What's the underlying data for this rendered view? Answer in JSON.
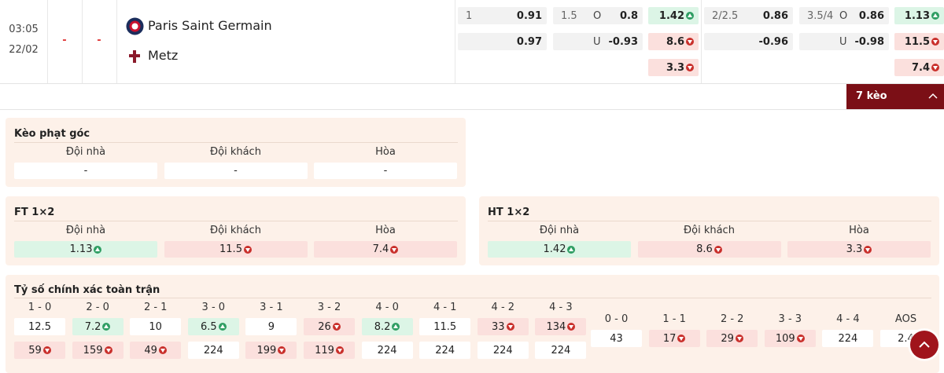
{
  "match": {
    "time": "03:05",
    "date": "22/02",
    "score_home": "-",
    "score_away": "-",
    "home_team": "Paris Saint Germain",
    "away_team": "Metz",
    "odds": [
      [
        {
          "line": "1",
          "price": 0.91
        },
        {
          "price": 0.97
        }
      ],
      [
        {
          "line": "1.5",
          "side": "O",
          "price": 0.8
        },
        {
          "side": "U",
          "price": -0.93
        }
      ],
      [
        {
          "price": 1.42,
          "trend": "up"
        },
        {
          "price": 8.6,
          "trend": "down"
        },
        {
          "price": 3.3,
          "trend": "down"
        }
      ],
      [
        {
          "line": "2/2.5",
          "price": 0.86
        },
        {
          "price": -0.96
        }
      ],
      [
        {
          "line": "3.5/4",
          "side": "O",
          "price": 0.86
        },
        {
          "side": "U",
          "price": -0.98
        }
      ],
      [
        {
          "price": 1.13,
          "trend": "up"
        },
        {
          "price": 11.5,
          "trend": "down"
        },
        {
          "price": 7.4,
          "trend": "down"
        }
      ]
    ]
  },
  "toggle": "7 kèo",
  "panels": [
    {
      "title": "Kèo phạt góc",
      "headers": [
        "Đội nhà",
        "Đội khách",
        "Hòa"
      ],
      "values": [
        {
          "price": "-"
        },
        {
          "price": "-"
        },
        {
          "price": "-"
        }
      ]
    },
    {
      "title": "FT 1×2",
      "headers": [
        "Đội nhà",
        "Đội khách",
        "Hòa"
      ],
      "values": [
        {
          "price": 1.13,
          "trend": "up"
        },
        {
          "price": 11.5,
          "trend": "down"
        },
        {
          "price": 7.4,
          "trend": "down"
        }
      ]
    },
    {
      "title": "HT 1×2",
      "headers": [
        "Đội nhà",
        "Đội khách",
        "Hòa"
      ],
      "values": [
        {
          "price": 1.42,
          "trend": "up"
        },
        {
          "price": 8.6,
          "trend": "down"
        },
        {
          "price": 3.3,
          "trend": "down"
        }
      ]
    }
  ],
  "correct_score": {
    "title": "Tỷ số chính xác toàn trận",
    "columns": [
      {
        "label": "1 - 0",
        "prices": [
          {
            "price": 12.5
          },
          {
            "price": 59,
            "trend": "down"
          }
        ]
      },
      {
        "label": "2 - 0",
        "prices": [
          {
            "price": 7.2,
            "trend": "up"
          },
          {
            "price": 159,
            "trend": "down"
          }
        ]
      },
      {
        "label": "2 - 1",
        "prices": [
          {
            "price": 10
          },
          {
            "price": 49,
            "trend": "down"
          }
        ]
      },
      {
        "label": "3 - 0",
        "prices": [
          {
            "price": 6.5,
            "trend": "up"
          },
          {
            "price": 224
          }
        ]
      },
      {
        "label": "3 - 1",
        "prices": [
          {
            "price": 9
          },
          {
            "price": 199,
            "trend": "down"
          }
        ]
      },
      {
        "label": "3 - 2",
        "prices": [
          {
            "price": 26,
            "trend": "down"
          },
          {
            "price": 119,
            "trend": "down"
          }
        ]
      },
      {
        "label": "4 - 0",
        "prices": [
          {
            "price": 8.2,
            "trend": "up"
          },
          {
            "price": 224
          }
        ]
      },
      {
        "label": "4 - 1",
        "prices": [
          {
            "price": 11.5
          },
          {
            "price": 224
          }
        ]
      },
      {
        "label": "4 - 2",
        "prices": [
          {
            "price": 33,
            "trend": "down"
          },
          {
            "price": 224
          }
        ]
      },
      {
        "label": "4 - 3",
        "prices": [
          {
            "price": 134,
            "trend": "down"
          },
          {
            "price": 224
          }
        ]
      }
    ],
    "draws": [
      {
        "label": "0 - 0",
        "price": 43
      },
      {
        "label": "1 - 1",
        "price": 17,
        "trend": "down"
      },
      {
        "label": "2 - 2",
        "price": 29,
        "trend": "down"
      },
      {
        "label": "3 - 3",
        "price": 109,
        "trend": "down"
      },
      {
        "label": "4 - 4",
        "price": 224
      },
      {
        "label": "AOS",
        "price": 2.4
      }
    ]
  }
}
